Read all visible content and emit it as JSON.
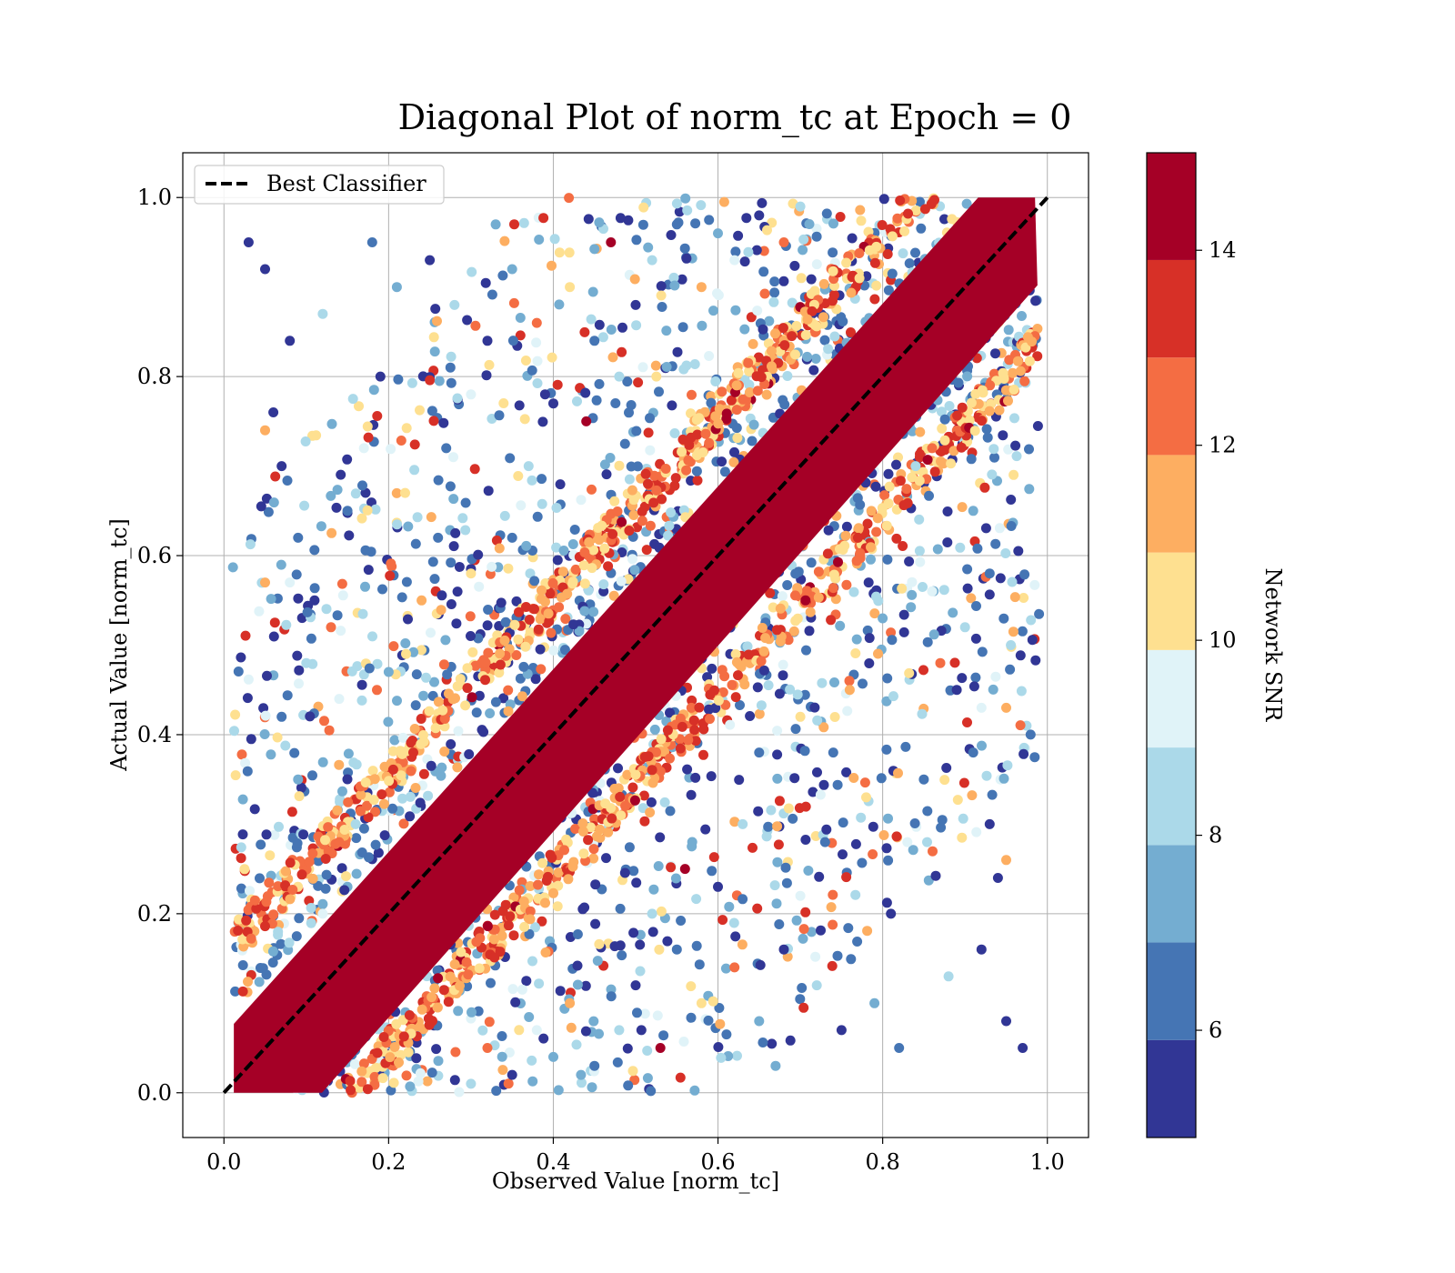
{
  "chart_data": {
    "type": "scatter",
    "title": "Diagonal Plot of norm_tc at Epoch = 0",
    "xlabel": "Observed Value [norm_tc]",
    "ylabel": "Actual Value [norm_tc]",
    "xlim": [
      -0.05,
      1.05
    ],
    "ylim": [
      -0.05,
      1.05
    ],
    "xticks": [
      "0.0",
      "0.2",
      "0.4",
      "0.6",
      "0.8",
      "1.0"
    ],
    "yticks": [
      "0.0",
      "0.2",
      "0.4",
      "0.6",
      "0.8",
      "1.0"
    ],
    "grid": true,
    "legend": {
      "position": "top-left",
      "entries": [
        {
          "label": "Best Classifier",
          "style": "dashed",
          "color": "#000000"
        }
      ]
    },
    "reference_line": {
      "name": "Best Classifier",
      "x": [
        0.0,
        1.0
      ],
      "y": [
        0.0,
        1.0
      ]
    },
    "colorbar": {
      "label": "Network SNR",
      "range": [
        4.9,
        15.0
      ],
      "ticks": [
        "6",
        "8",
        "10",
        "12",
        "14"
      ],
      "tick_values": [
        6,
        8,
        10,
        12,
        14
      ],
      "boundaries": [
        4.9,
        5.9,
        6.9,
        7.9,
        8.9,
        9.9,
        10.9,
        11.9,
        12.9,
        13.9,
        15.0
      ],
      "colors": [
        "#313695",
        "#4575b4",
        "#74add1",
        "#abd9e9",
        "#e0f3f8",
        "#fee090",
        "#fdae61",
        "#f46d43",
        "#d73027",
        "#a50026"
      ]
    },
    "series": [
      {
        "points_xy_snr": [
          [
            0.03,
            0.95,
            5.2
          ],
          [
            0.05,
            0.92,
            5.5
          ],
          [
            0.08,
            0.84,
            5.3
          ],
          [
            0.12,
            0.87,
            8.4
          ],
          [
            0.06,
            0.76,
            5.1
          ],
          [
            0.07,
            0.7,
            5.6
          ],
          [
            0.05,
            0.74,
            11.6
          ],
          [
            0.09,
            0.62,
            6.8
          ],
          [
            0.05,
            0.57,
            11.5
          ],
          [
            0.08,
            0.57,
            9.7
          ],
          [
            0.1,
            0.48,
            8.2
          ],
          [
            0.07,
            0.42,
            6.1
          ],
          [
            0.09,
            0.35,
            7.3
          ],
          [
            0.11,
            0.55,
            5.8
          ],
          [
            0.13,
            0.52,
            12.4
          ],
          [
            0.14,
            0.44,
            9.3
          ],
          [
            0.15,
            0.65,
            6.4
          ],
          [
            0.17,
            0.72,
            8.9
          ],
          [
            0.19,
            0.8,
            5.2
          ],
          [
            0.21,
            0.9,
            7.5
          ],
          [
            0.18,
            0.95,
            6.3
          ],
          [
            0.25,
            0.93,
            5.4
          ],
          [
            0.28,
            0.88,
            8.8
          ],
          [
            0.22,
            0.67,
            10.2
          ],
          [
            0.26,
            0.62,
            5.9
          ],
          [
            0.24,
            0.55,
            11.2
          ],
          [
            0.2,
            0.47,
            7.7
          ],
          [
            0.23,
            0.38,
            13.6
          ],
          [
            0.27,
            0.72,
            6.6
          ],
          [
            0.3,
            0.78,
            9.1
          ],
          [
            0.32,
            0.84,
            5.1
          ],
          [
            0.35,
            0.92,
            7.2
          ],
          [
            0.33,
            0.97,
            6.9
          ],
          [
            0.38,
            0.86,
            12.1
          ],
          [
            0.37,
            0.7,
            8.3
          ],
          [
            0.4,
            0.77,
            5.5
          ],
          [
            0.42,
            0.9,
            9.9
          ],
          [
            0.45,
            0.84,
            6.2
          ],
          [
            0.47,
            0.95,
            14.5
          ],
          [
            0.5,
            0.88,
            5.7
          ],
          [
            0.52,
            0.93,
            8.6
          ],
          [
            0.55,
            0.97,
            6.0
          ],
          [
            0.58,
            0.9,
            11.1
          ],
          [
            0.6,
            0.96,
            7.4
          ],
          [
            0.62,
            0.93,
            9.4
          ],
          [
            0.65,
            0.98,
            5.3
          ],
          [
            0.68,
            0.95,
            12.8
          ],
          [
            0.7,
            0.99,
            8.1
          ],
          [
            0.44,
            0.75,
            14.2
          ],
          [
            0.48,
            0.8,
            7.9
          ],
          [
            0.35,
            0.62,
            6.5
          ],
          [
            0.3,
            0.58,
            10.6
          ],
          [
            0.16,
            0.3,
            8.5
          ],
          [
            0.14,
            0.28,
            12.6
          ],
          [
            0.12,
            0.2,
            9.6
          ],
          [
            0.97,
            0.05,
            5.2
          ],
          [
            0.95,
            0.08,
            5.5
          ],
          [
            0.92,
            0.16,
            5.3
          ],
          [
            0.88,
            0.13,
            8.4
          ],
          [
            0.94,
            0.24,
            5.1
          ],
          [
            0.93,
            0.3,
            5.6
          ],
          [
            0.95,
            0.26,
            11.6
          ],
          [
            0.91,
            0.38,
            6.8
          ],
          [
            0.95,
            0.43,
            11.5
          ],
          [
            0.92,
            0.43,
            9.7
          ],
          [
            0.9,
            0.52,
            8.2
          ],
          [
            0.93,
            0.58,
            6.1
          ],
          [
            0.91,
            0.65,
            7.3
          ],
          [
            0.89,
            0.45,
            5.8
          ],
          [
            0.87,
            0.48,
            12.4
          ],
          [
            0.86,
            0.56,
            9.3
          ],
          [
            0.85,
            0.35,
            6.4
          ],
          [
            0.83,
            0.28,
            8.9
          ],
          [
            0.81,
            0.2,
            5.2
          ],
          [
            0.79,
            0.1,
            7.5
          ],
          [
            0.82,
            0.05,
            6.3
          ],
          [
            0.75,
            0.07,
            5.4
          ],
          [
            0.72,
            0.12,
            8.8
          ],
          [
            0.78,
            0.33,
            10.2
          ],
          [
            0.74,
            0.38,
            5.9
          ],
          [
            0.76,
            0.45,
            11.2
          ],
          [
            0.8,
            0.53,
            7.7
          ],
          [
            0.77,
            0.62,
            13.6
          ],
          [
            0.73,
            0.28,
            6.6
          ],
          [
            0.7,
            0.22,
            9.1
          ],
          [
            0.68,
            0.16,
            5.1
          ],
          [
            0.65,
            0.08,
            7.2
          ],
          [
            0.67,
            0.03,
            6.9
          ],
          [
            0.62,
            0.14,
            12.1
          ],
          [
            0.63,
            0.3,
            8.3
          ],
          [
            0.6,
            0.23,
            5.5
          ],
          [
            0.58,
            0.1,
            9.9
          ],
          [
            0.55,
            0.16,
            6.2
          ],
          [
            0.53,
            0.05,
            14.5
          ],
          [
            0.5,
            0.12,
            5.7
          ],
          [
            0.48,
            0.07,
            8.6
          ],
          [
            0.45,
            0.03,
            6.0
          ],
          [
            0.42,
            0.1,
            11.1
          ],
          [
            0.4,
            0.04,
            7.4
          ],
          [
            0.38,
            0.07,
            9.4
          ],
          [
            0.35,
            0.02,
            5.3
          ],
          [
            0.32,
            0.05,
            12.8
          ],
          [
            0.3,
            0.01,
            8.1
          ],
          [
            0.56,
            0.25,
            14.2
          ],
          [
            0.52,
            0.2,
            7.9
          ],
          [
            0.65,
            0.38,
            6.5
          ],
          [
            0.7,
            0.42,
            10.6
          ],
          [
            0.84,
            0.7,
            8.5
          ],
          [
            0.86,
            0.72,
            12.6
          ],
          [
            0.88,
            0.8,
            9.6
          ]
        ]
      }
    ],
    "dense_band": {
      "description_free": true,
      "center_line_slope": 1.0,
      "half_width_x": 0.07,
      "snr_inner": 14.5
    }
  }
}
